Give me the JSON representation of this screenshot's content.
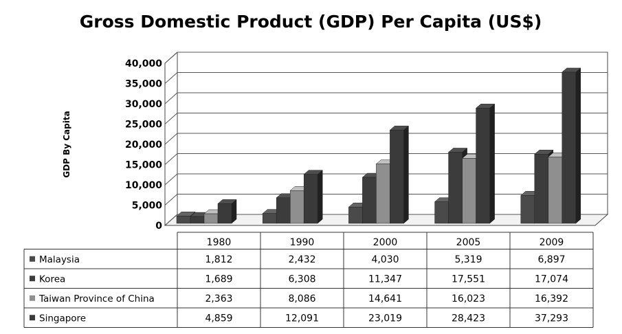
{
  "chart_data": {
    "type": "bar",
    "title": "Gross Domestic Product (GDP) Per Capita (US$)",
    "xlabel": "",
    "ylabel": "GDP By Capita",
    "ylim": [
      0,
      40000
    ],
    "yticks": [
      "0",
      "5,000",
      "10,000",
      "15,000",
      "20,000",
      "25,000",
      "30,000",
      "35,000",
      "40,000"
    ],
    "categories": [
      "1980",
      "1990",
      "2000",
      "2005",
      "2009"
    ],
    "series": [
      {
        "name": "Malaysia",
        "color": "#4a4a4a",
        "values": [
          1812,
          2432,
          4030,
          5319,
          6897
        ],
        "labels": [
          "1,812",
          "2,432",
          "4,030",
          "5,319",
          "6,897"
        ]
      },
      {
        "name": "Korea",
        "color": "#3c3c3c",
        "values": [
          1689,
          6308,
          11347,
          17551,
          17074
        ],
        "labels": [
          "1,689",
          "6,308",
          "11,347",
          "17,551",
          "17,074"
        ]
      },
      {
        "name": "Taiwan Province of China",
        "color": "#8f8f8f",
        "values": [
          2363,
          8086,
          14641,
          16023,
          16392
        ],
        "labels": [
          "2,363",
          "8,086",
          "14,641",
          "16,023",
          "16,392"
        ]
      },
      {
        "name": "Singapore",
        "color": "#3a3a3a",
        "values": [
          4859,
          12091,
          23019,
          28423,
          37293
        ],
        "labels": [
          "4,859",
          "12,091",
          "23,019",
          "28,423",
          "37,293"
        ]
      }
    ],
    "grid": true,
    "legend": "data-table"
  }
}
